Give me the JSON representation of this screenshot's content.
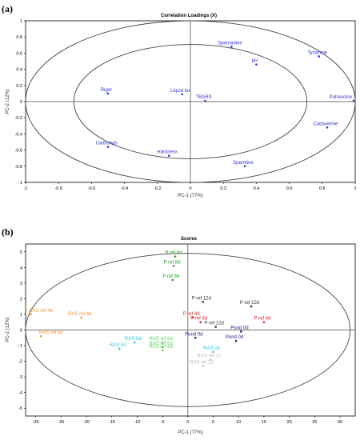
{
  "panels": [
    {
      "label": "(a)",
      "chart_data": {
        "type": "scatter",
        "title": "Correlation Loadings (X)",
        "xlabel": "PC-1 (77%)",
        "ylabel": "PC-2 (12%)",
        "xlim": [
          -1,
          1
        ],
        "ylim": [
          -1,
          1
        ],
        "xticks": [
          "-1",
          "-0.8",
          "-0.6",
          "-0.4",
          "-0.2",
          "0",
          "0.2",
          "0.4",
          "0.6",
          "0.8",
          "1"
        ],
        "yticks": [
          "1",
          "0.8",
          "0.6",
          "0.4",
          "0.2",
          "0",
          "-0.2",
          "-0.4",
          "-0.6",
          "-0.8",
          "-1"
        ],
        "ellipses": [
          1.0,
          0.707
        ],
        "grid": false,
        "points": [
          {
            "label": "Spermidine",
            "x": 0.25,
            "y": 0.68,
            "color": "#3333cc"
          },
          {
            "label": "Tyramine",
            "x": 0.78,
            "y": 0.56,
            "color": "#3333cc"
          },
          {
            "label": "pH",
            "x": 0.4,
            "y": 0.46,
            "color": "#3333cc"
          },
          {
            "label": "Rigor",
            "x": -0.5,
            "y": 0.1,
            "color": "#3333cc"
          },
          {
            "label": "Liquid los",
            "x": -0.05,
            "y": 0.09,
            "color": "#3333cc"
          },
          {
            "label": "TBARS",
            "x": 0.09,
            "y": 0.01,
            "color": "#3333cc"
          },
          {
            "label": "Putrescine",
            "x": 0.99,
            "y": 0.01,
            "color": "#3333cc"
          },
          {
            "label": "Cadaverine",
            "x": 0.83,
            "y": -0.32,
            "color": "#3333cc"
          },
          {
            "label": "Carbonyls",
            "x": -0.5,
            "y": -0.56,
            "color": "#3333cc"
          },
          {
            "label": "Hardness",
            "x": -0.13,
            "y": -0.67,
            "color": "#3333cc"
          },
          {
            "label": "Spermine",
            "x": 0.33,
            "y": -0.8,
            "color": "#3333cc"
          }
        ]
      }
    },
    {
      "label": "(b)",
      "chart_data": {
        "type": "scatter",
        "title": "Scores",
        "xlabel": "PC-1 (77%)",
        "ylabel": "PC-2 (12%)",
        "xlim": [
          -32,
          33
        ],
        "ylim": [
          -5.5,
          5.5
        ],
        "xticks": [
          "-30",
          "-25",
          "-20",
          "-15",
          "-10",
          "-5",
          "0",
          "5",
          "10",
          "15",
          "20",
          "25",
          "30"
        ],
        "yticks": [
          "5",
          "4",
          "3",
          "2",
          "1",
          "0",
          "-1",
          "-2",
          "-3",
          "-4",
          "-5"
        ],
        "ellipse": {
          "rx": 32,
          "ry": 4.9
        },
        "grid": false,
        "points": [
          {
            "label": "P ref 8d",
            "x": -2.5,
            "y": 4.7,
            "color": "#2e9c2e"
          },
          {
            "label": "P ref 8d",
            "x": -2.8,
            "y": 4.1,
            "color": "#2e9c2e"
          },
          {
            "label": "P ref 8d",
            "x": -3.0,
            "y": 3.2,
            "color": "#2e9c2e"
          },
          {
            "label": "RAS ref 4d",
            "x": -31.0,
            "y": 1.0,
            "color": "#f0962c"
          },
          {
            "label": "RAS ref 4d",
            "x": -21.0,
            "y": 0.8,
            "color": "#f0962c"
          },
          {
            "label": "RAS ref 4d",
            "x": -29.0,
            "y": -0.4,
            "color": "#f0962c"
          },
          {
            "label": "P ref 12d",
            "x": 3.0,
            "y": 1.8,
            "color": "#333333"
          },
          {
            "label": "P ref 12d",
            "x": 12.5,
            "y": 1.5,
            "color": "#333333"
          },
          {
            "label": "P ref 12d",
            "x": 5.5,
            "y": 0.2,
            "color": "#333333"
          },
          {
            "label": "P ref 4d",
            "x": 1.0,
            "y": 0.8,
            "color": "#e02020"
          },
          {
            "label": "P ref 4d",
            "x": 2.5,
            "y": 0.5,
            "color": "#e02020"
          },
          {
            "label": "P ref 4d",
            "x": 15.0,
            "y": 0.5,
            "color": "#e02020"
          },
          {
            "label": "Pond 0d",
            "x": 1.5,
            "y": -0.5,
            "color": "#1a1a8c"
          },
          {
            "label": "Pond 0d",
            "x": 10.5,
            "y": -0.1,
            "color": "#1a1a8c"
          },
          {
            "label": "Pond 0d",
            "x": 9.5,
            "y": -0.7,
            "color": "#1a1a8c"
          },
          {
            "label": "RAS 0d",
            "x": -10.5,
            "y": -0.8,
            "color": "#2ec4dc"
          },
          {
            "label": "RAS 0d",
            "x": -13.5,
            "y": -1.2,
            "color": "#2ec4dc"
          },
          {
            "label": "RAS 0d",
            "x": 5.0,
            "y": -1.4,
            "color": "#2ec4dc"
          },
          {
            "label": "RAS ref 8d",
            "x": -5.0,
            "y": -0.8,
            "color": "#5fd35f"
          },
          {
            "label": "RAS ref 8d",
            "x": -5.0,
            "y": -1.1,
            "color": "#5fd35f"
          },
          {
            "label": "RAS ref 8d",
            "x": -5.0,
            "y": -1.3,
            "color": "#5fd35f"
          },
          {
            "label": "RAS ref 12",
            "x": 4.5,
            "y": -1.9,
            "color": "#bbbbbb"
          },
          {
            "label": "RAS ref 12",
            "x": 3.0,
            "y": -2.3,
            "color": "#bbbbbb"
          }
        ]
      }
    }
  ]
}
